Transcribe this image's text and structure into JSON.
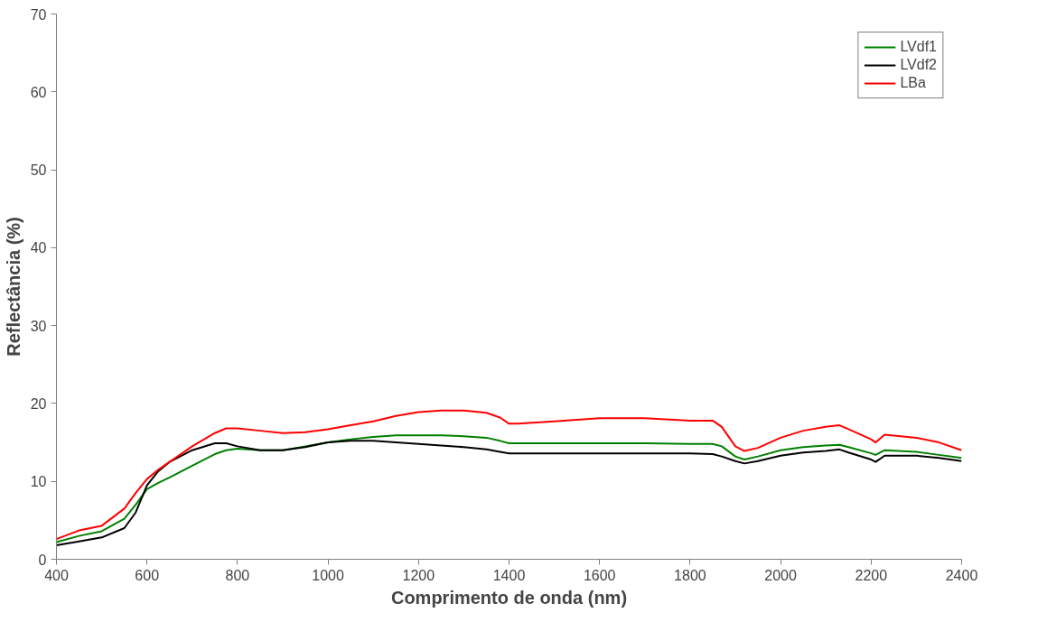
{
  "chart_data": {
    "type": "line",
    "xlabel": "Comprimento de onda (nm)",
    "ylabel": "Reflectância (%)",
    "x": [
      400,
      450,
      500,
      550,
      575,
      600,
      625,
      650,
      700,
      750,
      775,
      800,
      850,
      900,
      950,
      1000,
      1050,
      1100,
      1150,
      1200,
      1250,
      1300,
      1350,
      1380,
      1400,
      1420,
      1500,
      1600,
      1700,
      1800,
      1850,
      1870,
      1900,
      1920,
      1950,
      2000,
      2050,
      2100,
      2130,
      2150,
      2200,
      2210,
      2230,
      2300,
      2350,
      2400
    ],
    "series": [
      {
        "name": "LVdf1",
        "color": "#008000",
        "values": [
          2.2,
          3.0,
          3.6,
          5.2,
          7.0,
          9.0,
          9.8,
          10.5,
          12.0,
          13.5,
          14.0,
          14.2,
          14.0,
          14.0,
          14.5,
          15.0,
          15.4,
          15.7,
          15.9,
          15.9,
          15.9,
          15.8,
          15.6,
          15.2,
          14.9,
          14.9,
          14.9,
          14.9,
          14.9,
          14.8,
          14.8,
          14.5,
          13.2,
          12.8,
          13.2,
          14.0,
          14.4,
          14.6,
          14.7,
          14.4,
          13.6,
          13.4,
          14.0,
          13.8,
          13.4,
          13.0
        ]
      },
      {
        "name": "LVdf2",
        "color": "#000000",
        "values": [
          1.8,
          2.3,
          2.8,
          4.0,
          6.0,
          9.5,
          11.3,
          12.5,
          14.0,
          14.9,
          14.9,
          14.5,
          14.0,
          14.0,
          14.4,
          15.0,
          15.2,
          15.2,
          15.0,
          14.8,
          14.6,
          14.4,
          14.1,
          13.8,
          13.6,
          13.6,
          13.6,
          13.6,
          13.6,
          13.6,
          13.5,
          13.2,
          12.6,
          12.3,
          12.6,
          13.3,
          13.7,
          13.9,
          14.1,
          13.7,
          12.8,
          12.5,
          13.3,
          13.3,
          13.0,
          12.6
        ]
      },
      {
        "name": "LBa",
        "color": "#ff0000",
        "values": [
          2.6,
          3.7,
          4.3,
          6.5,
          8.5,
          10.3,
          11.5,
          12.5,
          14.5,
          16.2,
          16.8,
          16.8,
          16.5,
          16.2,
          16.3,
          16.7,
          17.2,
          17.7,
          18.4,
          18.9,
          19.1,
          19.1,
          18.8,
          18.2,
          17.4,
          17.4,
          17.7,
          18.1,
          18.1,
          17.8,
          17.8,
          17.0,
          14.5,
          13.9,
          14.3,
          15.6,
          16.5,
          17.0,
          17.2,
          16.7,
          15.4,
          15.0,
          16.0,
          15.6,
          15.0,
          14.0
        ]
      }
    ],
    "xlim": [
      400,
      2400
    ],
    "xticks": [
      400,
      600,
      800,
      1000,
      1200,
      1400,
      1600,
      1800,
      2000,
      2200,
      2400
    ],
    "ylim": [
      0,
      70
    ],
    "yticks": [
      0,
      10,
      20,
      30,
      40,
      50,
      60,
      70
    ],
    "grid": false,
    "legend": "top right",
    "marker": "none",
    "line_style": "solid"
  }
}
